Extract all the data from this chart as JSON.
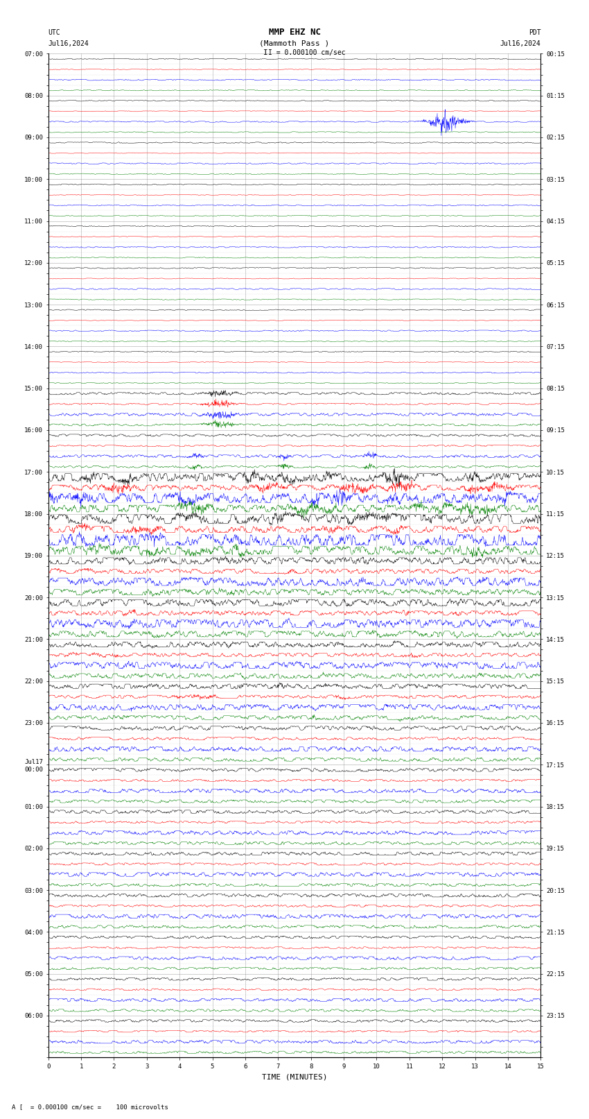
{
  "title_line1": "MMP EHZ NC",
  "title_line2": "(Mammoth Pass )",
  "scale_text": "I = 0.000100 cm/sec",
  "footer_text": "A [  = 0.000100 cm/sec =    100 microvolts",
  "xlabel": "TIME (MINUTES)",
  "xticks": [
    0,
    1,
    2,
    3,
    4,
    5,
    6,
    7,
    8,
    9,
    10,
    11,
    12,
    13,
    14,
    15
  ],
  "left_times": [
    "07:00",
    "",
    "",
    "",
    "08:00",
    "",
    "",
    "",
    "09:00",
    "",
    "",
    "",
    "10:00",
    "",
    "",
    "",
    "11:00",
    "",
    "",
    "",
    "12:00",
    "",
    "",
    "",
    "13:00",
    "",
    "",
    "",
    "14:00",
    "",
    "",
    "",
    "15:00",
    "",
    "",
    "",
    "16:00",
    "",
    "",
    "",
    "17:00",
    "",
    "",
    "",
    "18:00",
    "",
    "",
    "",
    "19:00",
    "",
    "",
    "",
    "20:00",
    "",
    "",
    "",
    "21:00",
    "",
    "",
    "",
    "22:00",
    "",
    "",
    "",
    "23:00",
    "",
    "",
    "",
    "Jul17\n00:00",
    "",
    "",
    "",
    "01:00",
    "",
    "",
    "",
    "02:00",
    "",
    "",
    "",
    "03:00",
    "",
    "",
    "",
    "04:00",
    "",
    "",
    "",
    "05:00",
    "",
    "",
    "",
    "06:00",
    "",
    "",
    ""
  ],
  "right_times": [
    "00:15",
    "",
    "",
    "",
    "01:15",
    "",
    "",
    "",
    "02:15",
    "",
    "",
    "",
    "03:15",
    "",
    "",
    "",
    "04:15",
    "",
    "",
    "",
    "05:15",
    "",
    "",
    "",
    "06:15",
    "",
    "",
    "",
    "07:15",
    "",
    "",
    "",
    "08:15",
    "",
    "",
    "",
    "09:15",
    "",
    "",
    "",
    "10:15",
    "",
    "",
    "",
    "11:15",
    "",
    "",
    "",
    "12:15",
    "",
    "",
    "",
    "13:15",
    "",
    "",
    "",
    "14:15",
    "",
    "",
    "",
    "15:15",
    "",
    "",
    "",
    "16:15",
    "",
    "",
    "",
    "17:15",
    "",
    "",
    "",
    "18:15",
    "",
    "",
    "",
    "19:15",
    "",
    "",
    "",
    "20:15",
    "",
    "",
    "",
    "21:15",
    "",
    "",
    "",
    "22:15",
    "",
    "",
    "",
    "23:15",
    "",
    "",
    ""
  ],
  "n_traces": 96,
  "trace_color_sequence": [
    "black",
    "red",
    "blue",
    "green",
    "black",
    "red",
    "blue",
    "green",
    "black",
    "red",
    "blue",
    "green",
    "black",
    "red",
    "blue",
    "green",
    "black",
    "red",
    "blue",
    "green",
    "black",
    "red",
    "blue",
    "green",
    "black",
    "red",
    "blue",
    "green",
    "black",
    "red",
    "blue",
    "green",
    "black",
    "red",
    "blue",
    "green",
    "black",
    "red",
    "blue",
    "green",
    "black",
    "red",
    "blue",
    "green",
    "black",
    "red",
    "blue",
    "green",
    "black",
    "red",
    "blue",
    "green",
    "black",
    "red",
    "blue",
    "green",
    "black",
    "red",
    "blue",
    "green",
    "black",
    "red",
    "blue",
    "green",
    "black",
    "red",
    "blue",
    "green",
    "black",
    "red",
    "blue",
    "green",
    "black",
    "red",
    "blue",
    "green",
    "black",
    "red",
    "blue",
    "green",
    "black",
    "red",
    "blue",
    "green",
    "black",
    "red",
    "blue",
    "green",
    "black",
    "red",
    "blue",
    "green",
    "black",
    "red",
    "blue",
    "green"
  ],
  "fig_width": 8.5,
  "fig_height": 16.13,
  "bg_color": "white",
  "grid_color": "#777777",
  "tick_label_fontsize": 6.5,
  "title_fontsize": 9,
  "axis_label_fontsize": 8,
  "seed": 12345
}
